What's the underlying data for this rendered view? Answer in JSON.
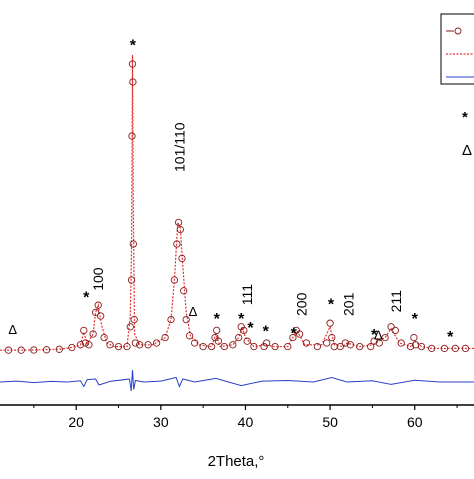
{
  "chart_data": {
    "type": "scatter",
    "xlabel": "2Theta,°",
    "xlim": [
      11,
      67
    ],
    "x_ticks": [
      20,
      30,
      40,
      50,
      60
    ],
    "x_tick_labels": [
      "20",
      "30",
      "40",
      "50",
      "60"
    ],
    "ylabel": "",
    "y_ticks_visible": false,
    "grid": false,
    "legend": {
      "position": "top-right",
      "entries": [
        {
          "marker": "open-circle",
          "color": "#8b1a1a",
          "label": ""
        },
        {
          "marker": "dotted-line",
          "color": "#e03030",
          "label": ""
        },
        {
          "marker": "solid-line",
          "color": "#2a3fc8",
          "label": ""
        }
      ],
      "symbol_keys": [
        "*",
        "Δ"
      ]
    },
    "observed_points": {
      "x": [
        12,
        13.5,
        15,
        16.5,
        18,
        19.5,
        20.5,
        20.9,
        21.1,
        21.5,
        22,
        22.3,
        22.6,
        22.9,
        23.3,
        24,
        25,
        26,
        26.4,
        26.55,
        26.6,
        26.65,
        26.7,
        26.75,
        26.85,
        27,
        27.5,
        28.5,
        29.5,
        30.5,
        31.2,
        31.6,
        31.9,
        32.1,
        32.3,
        32.5,
        32.7,
        33,
        33.4,
        34,
        35,
        36,
        36.4,
        36.6,
        36.8,
        37.5,
        38.5,
        39.2,
        39.5,
        39.8,
        40.2,
        41,
        42.2,
        42.5,
        43.5,
        45,
        45.6,
        46,
        46.4,
        47.2,
        48.5,
        49.6,
        50,
        50.2,
        50.5,
        51.2,
        51.8,
        52.4,
        53.5,
        54.8,
        55.2,
        55.8,
        56.5,
        57.2,
        57.7,
        58.4,
        59.5,
        59.9,
        60.1,
        60.8,
        62,
        63.5,
        64.8,
        66
      ],
      "y": [
        1,
        1,
        1.1,
        1.2,
        1.5,
        2.5,
        4,
        12,
        5,
        4,
        10,
        22,
        26,
        20,
        8,
        4,
        3,
        3,
        14,
        40,
        120,
        160,
        150,
        60,
        18,
        5,
        4,
        4,
        5,
        8,
        18,
        40,
        60,
        72,
        68,
        52,
        34,
        18,
        9,
        5,
        3,
        3,
        8,
        12,
        6,
        3,
        4,
        8,
        14,
        12,
        6,
        3,
        3,
        5,
        3,
        3,
        8,
        12,
        10,
        5,
        3,
        5,
        16,
        8,
        3,
        3,
        5,
        4,
        3,
        3,
        6,
        5,
        8,
        14,
        12,
        5,
        3,
        8,
        4,
        3,
        2,
        2,
        2,
        2
      ]
    },
    "calculated_curve": {
      "x": [
        11,
        15,
        18,
        19.5,
        20.5,
        20.9,
        21.3,
        22,
        22.3,
        22.6,
        23,
        23.6,
        24.5,
        26,
        26.4,
        26.55,
        26.65,
        26.75,
        26.9,
        27.5,
        29,
        30.5,
        31.2,
        31.6,
        32,
        32.3,
        32.6,
        33,
        33.5,
        34.5,
        36,
        36.5,
        37,
        38.5,
        39.2,
        39.6,
        40,
        41,
        42.3,
        43.5,
        45,
        45.7,
        46.2,
        47,
        49,
        50,
        50.5,
        51.5,
        52,
        53.5,
        55,
        56.5,
        57.2,
        58.2,
        59.5,
        60,
        60.8,
        62,
        67
      ],
      "y": [
        1,
        1.1,
        1.5,
        2.5,
        4,
        11,
        4.5,
        10,
        22,
        26,
        15,
        5,
        3,
        3,
        20,
        60,
        165,
        80,
        10,
        4,
        4,
        8,
        18,
        40,
        72,
        69,
        48,
        22,
        9,
        4,
        3,
        10,
        3,
        4,
        8,
        14,
        8,
        3,
        4,
        3,
        3,
        9,
        11,
        4,
        4,
        14,
        4,
        3,
        5,
        3,
        4,
        8,
        13,
        5,
        3,
        6,
        3,
        2,
        2
      ]
    },
    "difference_curve": {
      "x": [
        11,
        13,
        15,
        17,
        19,
        20.5,
        20.9,
        21.3,
        22.3,
        22.7,
        24,
        26.3,
        26.5,
        26.65,
        26.8,
        27,
        28,
        30,
        31.8,
        32.2,
        32.6,
        34,
        36.5,
        38,
        39.5,
        42,
        45,
        48,
        50.2,
        52,
        55,
        57.2,
        60,
        63,
        67
      ],
      "y": [
        0,
        0.3,
        -0.2,
        0.2,
        0,
        0.4,
        -1.5,
        0.8,
        1,
        -1,
        0.2,
        1,
        -3,
        4,
        -2.5,
        0.5,
        0,
        0.3,
        1.5,
        -1.5,
        1,
        0,
        1.2,
        0,
        -1.2,
        0.3,
        0.5,
        0,
        1.5,
        0,
        0.4,
        -0.8,
        0.6,
        0,
        0
      ]
    },
    "annotations": [
      {
        "text": "*",
        "x": 26.7,
        "y": 172
      },
      {
        "text": "101/110",
        "x": 32.2,
        "y": 100,
        "rotated": true
      },
      {
        "text": "*",
        "x": 21.2,
        "y": 32
      },
      {
        "text": "100",
        "x": 22.6,
        "y": 34,
        "rotated": true
      },
      {
        "text": "Δ",
        "x": 12.5,
        "y": 10
      },
      {
        "text": "Δ",
        "x": 33.8,
        "y": 20
      },
      {
        "text": "*",
        "x": 36.6,
        "y": 20
      },
      {
        "text": "*",
        "x": 39.5,
        "y": 20
      },
      {
        "text": "111",
        "x": 40.2,
        "y": 26,
        "rotated": true
      },
      {
        "text": "*",
        "x": 40.6,
        "y": 15
      },
      {
        "text": "*",
        "x": 42.4,
        "y": 13
      },
      {
        "text": "*",
        "x": 45.7,
        "y": 12
      },
      {
        "text": "200",
        "x": 46.6,
        "y": 20,
        "rotated": true
      },
      {
        "text": "*",
        "x": 50.1,
        "y": 28
      },
      {
        "text": "201",
        "x": 52.2,
        "y": 20,
        "rotated": true
      },
      {
        "text": "*",
        "x": 55.2,
        "y": 11
      },
      {
        "text": "Δ",
        "x": 55.7,
        "y": 7
      },
      {
        "text": "211",
        "x": 57.8,
        "y": 22,
        "rotated": true
      },
      {
        "text": "*",
        "x": 60,
        "y": 20
      },
      {
        "text": "*",
        "x": 64.2,
        "y": 10
      }
    ]
  }
}
